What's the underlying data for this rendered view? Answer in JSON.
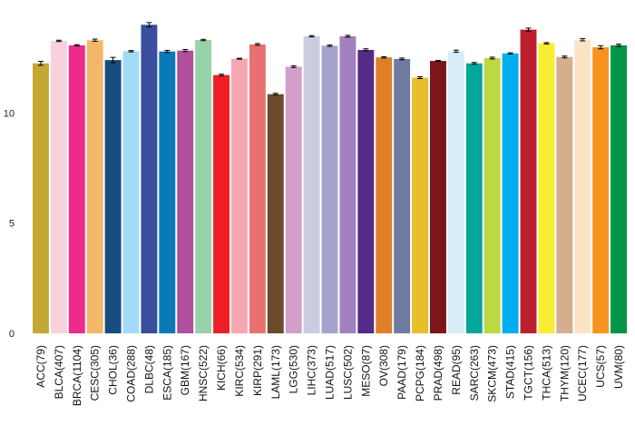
{
  "chart_data": {
    "type": "bar",
    "title": "",
    "xlabel": "",
    "ylabel": "",
    "ylim": [
      0,
      14.3
    ],
    "yticks": [
      0,
      5,
      10
    ],
    "grid": false,
    "legend": "none",
    "error_bars": true,
    "categories": [
      "ACC(79)",
      "BLCA(407)",
      "BRCA(1104)",
      "CESC(305)",
      "CHOL(36)",
      "COAD(288)",
      "DLBC(48)",
      "ESCA(185)",
      "GBM(167)",
      "HNSC(522)",
      "KICH(66)",
      "KIRC(534)",
      "KIRP(291)",
      "LAML(173)",
      "LGG(530)",
      "LIHC(373)",
      "LUAD(517)",
      "LUSC(502)",
      "MESO(87)",
      "OV(308)",
      "PAAD(179)",
      "PCPG(184)",
      "PRAD(498)",
      "READ(95)",
      "SARC(263)",
      "SKCM(473)",
      "STAD(415)",
      "TGCT(156)",
      "THCA(513)",
      "THYM(120)",
      "UCEC(177)",
      "UCS(57)",
      "UVM(80)"
    ],
    "values": [
      12.25,
      13.27,
      13.07,
      13.3,
      12.4,
      12.8,
      14.0,
      12.79,
      12.83,
      13.31,
      11.72,
      12.46,
      13.11,
      10.85,
      12.1,
      13.48,
      13.05,
      13.48,
      12.86,
      12.52,
      12.45,
      11.6,
      12.36,
      12.8,
      12.25,
      12.49,
      12.7,
      13.78,
      13.16,
      12.54,
      13.32,
      12.98,
      13.07
    ],
    "errors": [
      0.09,
      0.03,
      0.03,
      0.05,
      0.12,
      0.03,
      0.1,
      0.05,
      0.05,
      0.03,
      0.04,
      0.02,
      0.04,
      0.04,
      0.04,
      0.03,
      0.03,
      0.04,
      0.05,
      0.03,
      0.04,
      0.04,
      0.02,
      0.05,
      0.04,
      0.04,
      0.03,
      0.07,
      0.03,
      0.04,
      0.05,
      0.07,
      0.05
    ],
    "colors": [
      "#C5A831",
      "#F9D1DC",
      "#EE2A8B",
      "#F4B767",
      "#154E7F",
      "#A3DAF9",
      "#3A4E9E",
      "#087AB6",
      "#B04F9E",
      "#98D2A8",
      "#EE1E26",
      "#F5A7B1",
      "#E97071",
      "#6C4A2C",
      "#D49ECB",
      "#CBCCE0",
      "#A5A3CE",
      "#A281BE",
      "#542C88",
      "#DF7F25",
      "#6F7BA0",
      "#E8BE2A",
      "#7C1619",
      "#D8EDF8",
      "#02A79C",
      "#BDD841",
      "#00AEEF",
      "#BD1F2F",
      "#F9ED32",
      "#D4AE8E",
      "#FCE3C6",
      "#F7941D",
      "#009548"
    ]
  }
}
